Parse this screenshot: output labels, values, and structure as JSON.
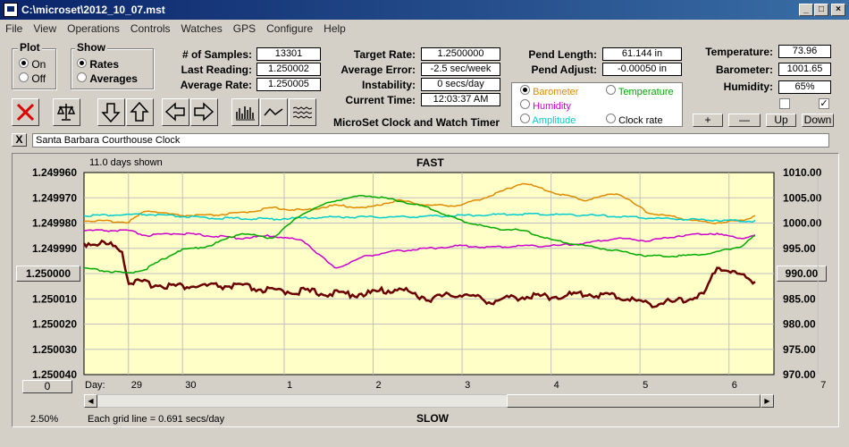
{
  "window": {
    "title": "C:\\microset\\2012_10_07.mst"
  },
  "menu": [
    "File",
    "View",
    "Operations",
    "Controls",
    "Watches",
    "GPS",
    "Configure",
    "Help"
  ],
  "plot": {
    "label": "Plot",
    "on": "On",
    "off": "Off"
  },
  "show": {
    "label": "Show",
    "rates": "Rates",
    "averages": "Averages"
  },
  "stats": {
    "samples_label": "# of Samples:",
    "samples": "13301",
    "last_label": "Last Reading:",
    "last": "1.250002",
    "avg_label": "Average Rate:",
    "avg": "1.250005",
    "target_label": "Target Rate:",
    "target": "1.2500000",
    "err_label": "Average Error:",
    "err": "-2.5 sec/week",
    "inst_label": "Instability:",
    "inst": "0 secs/day",
    "time_label": "Current Time:",
    "time": "12:03:37 AM",
    "pend_len_label": "Pend Length:",
    "pend_len": "61.144 in",
    "pend_adj_label": "Pend Adjust:",
    "pend_adj": "-0.00050 in",
    "temp_label": "Temperature:",
    "temp": "73.96",
    "baro_label": "Barometer:",
    "baro": "1001.65",
    "hum_label": "Humidity:",
    "hum": "65%"
  },
  "app_name": "MicroSet Clock and Watch Timer",
  "series_select": [
    {
      "label": "Barometer",
      "color": "#e08a00"
    },
    {
      "label": "Temperature",
      "color": "#00aa00"
    },
    {
      "label": "Humidity",
      "color": "#cc00cc"
    },
    {
      "label": "Amplitude",
      "color": "#00cccc"
    },
    {
      "label": "Clock rate",
      "color": "#000000"
    }
  ],
  "adj_buttons": [
    "+",
    "—",
    "Up",
    "Down"
  ],
  "clock_name": "Santa Barbara Courthouse Clock",
  "close_x": "X",
  "chart": {
    "days_shown": "11.0 days shown",
    "top_label": "FAST",
    "bottom_label": "SLOW",
    "grid_note": "Each grid line = 0.691 secs/day",
    "percent": "2.50%",
    "day_label": "Day:",
    "center_value": "1.250000",
    "right_value": "990.00",
    "zero_btn": "0"
  },
  "chart_data": {
    "type": "line",
    "ylim_left": [
      1.24996,
      1.25004
    ],
    "ylim_right": [
      970,
      1010
    ],
    "left_ticks": [
      "1.249960",
      "1.249970",
      "1.249980",
      "1.249990",
      "1.250000",
      "1.250010",
      "1.250020",
      "1.250030",
      "1.250040"
    ],
    "right_ticks": [
      "1010.00",
      "1005.00",
      "1000.00",
      "995.00",
      "990.00",
      "985.00",
      "980.00",
      "975.00",
      "970.00"
    ],
    "x_ticks": [
      "29",
      "30",
      "1",
      "2",
      "3",
      "4",
      "5",
      "6",
      "7"
    ],
    "series": [
      {
        "name": "Clock rate",
        "color": "#6b0000",
        "x": [
          0,
          0.3,
          0.6,
          0.7,
          1,
          1.5,
          2,
          2.5,
          3,
          3.5,
          4,
          4.5,
          5,
          5.5,
          6,
          6.5,
          7,
          7.5,
          8,
          8.5,
          9,
          9.5,
          9.9,
          10.1,
          10.3,
          10.5,
          10.7
        ],
        "y": [
          1.249988,
          1.249988,
          1.24999,
          1.250003,
          1.250004,
          1.250005,
          1.250005,
          1.250005,
          1.250007,
          1.250007,
          1.250008,
          1.250008,
          1.250006,
          1.25001,
          1.250008,
          1.250011,
          1.250009,
          1.250009,
          1.250008,
          1.250009,
          1.250012,
          1.250011,
          1.250008,
          1.249997,
          1.249999,
          1.250001,
          1.250003
        ]
      },
      {
        "name": "Barometer",
        "color": "#e08a00",
        "x": [
          0,
          0.7,
          1,
          1.5,
          2,
          2.5,
          3,
          3.5,
          4,
          4.5,
          5,
          5.5,
          6,
          6.5,
          7,
          7.5,
          8,
          8.5,
          9,
          9.5,
          10,
          10.5,
          10.7
        ],
        "y": [
          1000.5,
          1000.2,
          1002.5,
          1001.5,
          1001.5,
          1002,
          1003,
          1002.5,
          1003.5,
          1003,
          1004.5,
          1003.5,
          1003.5,
          1005.5,
          1008,
          1006,
          1004.5,
          1006,
          1002,
          1001,
          1000,
          1000.5,
          1001.5
        ]
      },
      {
        "name": "Amplitude",
        "color": "#00cccc",
        "x": [
          0,
          1,
          2,
          3,
          4,
          5,
          6,
          7,
          8,
          9,
          10,
          10.7
        ],
        "y": [
          1001.5,
          1001.7,
          1001,
          1000.8,
          1001.2,
          1001.2,
          1001.5,
          1001.8,
          1001.6,
          1001,
          1000.6,
          1000.4
        ]
      },
      {
        "name": "Humidity",
        "color": "#cc00cc",
        "x": [
          0,
          0.7,
          1,
          1.5,
          2,
          2.5,
          3,
          3.5,
          4,
          4.5,
          5,
          5.5,
          6,
          6.5,
          7,
          7.5,
          8,
          8.5,
          9,
          9.5,
          10,
          10.5,
          10.7
        ],
        "y": [
          998.5,
          998.5,
          997.5,
          998,
          997.5,
          997,
          997.5,
          996.5,
          991,
          993.5,
          994.5,
          995,
          995.5,
          995.2,
          995.5,
          995.5,
          996,
          997,
          996.5,
          997.5,
          998,
          997,
          997.5
        ]
      },
      {
        "name": "Temperature",
        "color": "#00aa00",
        "x": [
          0,
          0.7,
          1,
          1.5,
          2,
          2.5,
          3,
          3.5,
          4,
          4.5,
          5,
          5.5,
          6,
          6.5,
          7,
          7.5,
          8,
          8.5,
          9,
          9.5,
          10,
          10.5,
          10.7
        ],
        "y": [
          991,
          990,
          991,
          994.5,
          995.5,
          998,
          997,
          1002,
          1004.5,
          1005.5,
          1004.5,
          1003,
          1000.5,
          999,
          998.5,
          996.5,
          995.5,
          994.5,
          993.5,
          993.5,
          994,
          995.5,
          997.5
        ]
      }
    ]
  }
}
